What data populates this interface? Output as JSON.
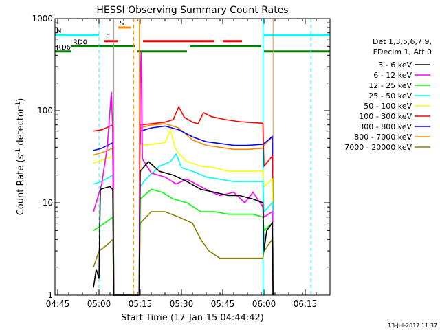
{
  "chart_data": {
    "type": "line",
    "title": "HESSI Observing Summary Count Rates",
    "xlabel": "Start Time (17-Jan-15 04:44:42)",
    "ylabel_main": "Count Rate (s",
    "ylabel_sup1": "-1",
    "ylabel_mid": " detector",
    "ylabel_sup2": "-1",
    "ylabel_end": ")",
    "x_range_minutes_since_0444": [
      0,
      100
    ],
    "ylim": [
      1,
      1000
    ],
    "yscale": "log",
    "x_tick_labels": [
      {
        "label": "04:45",
        "t": 1
      },
      {
        "label": "05:00",
        "t": 16
      },
      {
        "label": "05:15",
        "t": 31
      },
      {
        "label": "05:30",
        "t": 46
      },
      {
        "label": "05:45",
        "t": 61
      },
      {
        "label": "06:00",
        "t": 76
      },
      {
        "label": "06:15",
        "t": 91
      }
    ],
    "y_tick_labels": [
      {
        "label": "1",
        "v": 1
      },
      {
        "label": "10",
        "v": 10
      },
      {
        "label": "100",
        "v": 100
      },
      {
        "label": "1000",
        "v": 1000
      }
    ],
    "legend_header": [
      "Det 1,3,5,6,7,9,",
      "FDecim 1, Att 0"
    ],
    "legend_position": "right",
    "series": [
      {
        "name": "3 - 6 keV",
        "color": "#000000",
        "points": [
          [
            14,
            1.2
          ],
          [
            15,
            1.9
          ],
          [
            16,
            1.5
          ],
          [
            16.5,
            14
          ],
          [
            20,
            15
          ],
          [
            21,
            14
          ],
          [
            21.4,
            1
          ],
          [
            30.6,
            1
          ],
          [
            31,
            22
          ],
          [
            34,
            28
          ],
          [
            38,
            22
          ],
          [
            43,
            20
          ],
          [
            48,
            17
          ],
          [
            53,
            14
          ],
          [
            58,
            13
          ],
          [
            63,
            12
          ],
          [
            67,
            12
          ],
          [
            72,
            11
          ],
          [
            75.6,
            10
          ],
          [
            76,
            3
          ],
          [
            77,
            5
          ],
          [
            79,
            6
          ],
          [
            79.3,
            1
          ]
        ]
      },
      {
        "name": "6 - 12 keV",
        "color": "#ff00ff",
        "points": [
          [
            14,
            8
          ],
          [
            17,
            16
          ],
          [
            19,
            40
          ],
          [
            20.5,
            160
          ],
          [
            21,
            60
          ],
          [
            21.4,
            1
          ],
          [
            30.6,
            1
          ],
          [
            31,
            200
          ],
          [
            31.3,
            430
          ],
          [
            31.8,
            30
          ],
          [
            35,
            21
          ],
          [
            40,
            19
          ],
          [
            44,
            16
          ],
          [
            48,
            18
          ],
          [
            53,
            15
          ],
          [
            57,
            13
          ],
          [
            60,
            12
          ],
          [
            65,
            13
          ],
          [
            69,
            10
          ],
          [
            72,
            13
          ],
          [
            75.6,
            9
          ],
          [
            76,
            7
          ],
          [
            79,
            8
          ],
          [
            79.3,
            1
          ]
        ]
      },
      {
        "name": "12 - 25 keV",
        "color": "#00ff00",
        "points": [
          [
            14,
            5
          ],
          [
            18,
            6
          ],
          [
            21,
            7
          ],
          [
            21.4,
            1
          ],
          [
            30.6,
            1
          ],
          [
            31,
            11
          ],
          [
            35,
            14
          ],
          [
            39,
            13
          ],
          [
            43,
            11
          ],
          [
            48,
            10
          ],
          [
            53,
            8
          ],
          [
            58,
            8
          ],
          [
            63,
            7.5
          ],
          [
            68,
            7.5
          ],
          [
            72,
            7.5
          ],
          [
            75.6,
            7
          ],
          [
            76,
            5
          ],
          [
            79,
            6
          ],
          [
            79.3,
            1
          ]
        ]
      },
      {
        "name": "25 - 50 keV",
        "color": "#00ffff",
        "points": [
          [
            14,
            16
          ],
          [
            17,
            17
          ],
          [
            21,
            20
          ],
          [
            21.4,
            1
          ],
          [
            30.6,
            1
          ],
          [
            31,
            15
          ],
          [
            33,
            18
          ],
          [
            38,
            25
          ],
          [
            42,
            28
          ],
          [
            44,
            34
          ],
          [
            46,
            24
          ],
          [
            50,
            22
          ],
          [
            55,
            19
          ],
          [
            60,
            18
          ],
          [
            65,
            17
          ],
          [
            70,
            17
          ],
          [
            75.6,
            17
          ],
          [
            76,
            8
          ],
          [
            79,
            10
          ],
          [
            79.3,
            1
          ]
        ]
      },
      {
        "name": "50 - 100 keV",
        "color": "#ffff00",
        "points": [
          [
            14,
            27
          ],
          [
            17,
            29
          ],
          [
            21,
            32
          ],
          [
            21.4,
            1
          ],
          [
            30.6,
            1
          ],
          [
            31,
            42
          ],
          [
            35,
            43
          ],
          [
            40,
            45
          ],
          [
            42,
            62
          ],
          [
            43.5,
            40
          ],
          [
            45,
            34
          ],
          [
            48,
            28
          ],
          [
            53,
            25
          ],
          [
            58,
            24
          ],
          [
            63,
            22
          ],
          [
            68,
            22
          ],
          [
            72,
            22
          ],
          [
            75.6,
            22
          ],
          [
            76,
            15
          ],
          [
            79,
            18
          ],
          [
            79.3,
            1
          ]
        ]
      },
      {
        "name": "100 - 300 keV",
        "color": "#ff0000",
        "points": [
          [
            14,
            60
          ],
          [
            17,
            62
          ],
          [
            21,
            70
          ],
          [
            21.4,
            1
          ],
          [
            30.6,
            1
          ],
          [
            31,
            70
          ],
          [
            35,
            72
          ],
          [
            40,
            75
          ],
          [
            43,
            80
          ],
          [
            45,
            110
          ],
          [
            47,
            85
          ],
          [
            50,
            75
          ],
          [
            52,
            72
          ],
          [
            54,
            95
          ],
          [
            57,
            86
          ],
          [
            62,
            80
          ],
          [
            67,
            76
          ],
          [
            72,
            74
          ],
          [
            75.6,
            73
          ],
          [
            76,
            25
          ],
          [
            79,
            32
          ],
          [
            79.3,
            1
          ]
        ]
      },
      {
        "name": "300 - 800 keV",
        "color": "#0000ff",
        "points": [
          [
            14,
            37
          ],
          [
            17,
            39
          ],
          [
            21,
            45
          ],
          [
            21.4,
            1
          ],
          [
            30.6,
            1
          ],
          [
            31,
            60
          ],
          [
            35,
            65
          ],
          [
            40,
            68
          ],
          [
            45,
            62
          ],
          [
            50,
            52
          ],
          [
            55,
            46
          ],
          [
            60,
            44
          ],
          [
            65,
            42
          ],
          [
            70,
            42
          ],
          [
            75.6,
            43
          ],
          [
            76,
            44
          ],
          [
            79,
            52
          ],
          [
            79.3,
            1
          ]
        ]
      },
      {
        "name": "800 - 7000 keV",
        "color": "#ff8800",
        "points": [
          [
            14,
            33
          ],
          [
            17,
            35
          ],
          [
            21,
            39
          ],
          [
            21.4,
            1
          ],
          [
            30.6,
            1
          ],
          [
            31,
            65
          ],
          [
            35,
            70
          ],
          [
            40,
            72
          ],
          [
            45,
            65
          ],
          [
            50,
            48
          ],
          [
            55,
            42
          ],
          [
            60,
            40
          ],
          [
            65,
            38
          ],
          [
            70,
            38
          ],
          [
            75.6,
            39
          ],
          [
            76,
            42
          ],
          [
            79,
            52
          ],
          [
            79.3,
            1
          ]
        ]
      },
      {
        "name": "7000 - 20000 keV",
        "color": "#888000",
        "points": [
          [
            14,
            2
          ],
          [
            16,
            3
          ],
          [
            19,
            3.5
          ],
          [
            21,
            4
          ],
          [
            21.4,
            1
          ],
          [
            30.6,
            1
          ],
          [
            31,
            6
          ],
          [
            35,
            8
          ],
          [
            40,
            8
          ],
          [
            45,
            7
          ],
          [
            50,
            6
          ],
          [
            53,
            4
          ],
          [
            56,
            3
          ],
          [
            60,
            2.5
          ],
          [
            65,
            2.5
          ],
          [
            70,
            2.5
          ],
          [
            75.6,
            2.5
          ],
          [
            76,
            3
          ],
          [
            79,
            4
          ],
          [
            79.3,
            1
          ]
        ]
      }
    ],
    "flag_bars": [
      {
        "label": "N",
        "color": "#00ffff",
        "segments": [
          [
            0,
            16
          ],
          [
            76,
            100
          ]
        ],
        "y": 660
      },
      {
        "label": "S",
        "color": "#ff8800",
        "segments": [
          [
            23,
            27.5
          ]
        ],
        "y": 800
      },
      {
        "label": "F",
        "color": "#ff0000",
        "segments": [
          [
            18,
            23
          ],
          [
            32,
            58
          ],
          [
            61,
            68
          ]
        ],
        "y": 570
      },
      {
        "label": "RD0",
        "color": "#008000",
        "segments": [
          [
            6,
            29
          ],
          [
            49,
            75
          ]
        ],
        "y": 500
      },
      {
        "label": "RD6",
        "color": "#008000",
        "segments": [
          [
            0,
            6
          ],
          [
            30,
            48
          ],
          [
            76,
            100
          ]
        ],
        "y": 440
      }
    ],
    "vertical_lines": [
      {
        "t": 0,
        "color": "#00ffff",
        "style": "solid"
      },
      {
        "t": 16,
        "color": "#00ffff",
        "style": "dashed"
      },
      {
        "t": 21.4,
        "color": "#ff8800",
        "style": "solid"
      },
      {
        "t": 28.6,
        "color": "#ff8800",
        "style": "dashed"
      },
      {
        "t": 30.6,
        "color": "#ff8800",
        "style": "solid"
      },
      {
        "t": 75.6,
        "color": "#00ffff",
        "style": "solid"
      },
      {
        "t": 79.3,
        "color": "#ff8800",
        "style": "solid"
      },
      {
        "t": 93,
        "color": "#00ffff",
        "style": "dashed"
      }
    ],
    "timestamp": "13-Jul-2017 11:37"
  }
}
